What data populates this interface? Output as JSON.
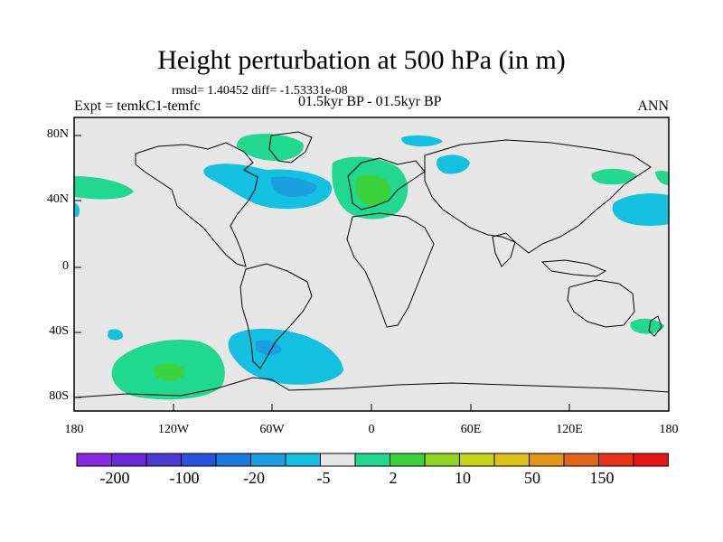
{
  "title": "Height perturbation at 500 hPa (in m)",
  "subtitle": "rmsd= 1.40452 diff= -1.53331e-08",
  "left_label": "Expt = temkC1-temfc",
  "center_label": "01.5kyr BP - 01.5kyr BP",
  "right_label": "ANN",
  "y_ticks": [
    "80N",
    "40N",
    "0",
    "40S",
    "80S"
  ],
  "x_ticks": [
    "180",
    "120W",
    "60W",
    "0",
    "60E",
    "120E",
    "180"
  ],
  "colorbar": {
    "colors": [
      "#8a2be2",
      "#6a28d8",
      "#4b3bd0",
      "#2a52dc",
      "#1a7ae0",
      "#1aa0e0",
      "#14c0e0",
      "#e6e6e6",
      "#20d890",
      "#3cd23c",
      "#8ed420",
      "#c8d41a",
      "#e0c01a",
      "#e0961a",
      "#e0641a",
      "#e8321a",
      "#e81414"
    ],
    "labels": [
      "-200",
      "-100",
      "-20",
      "-5",
      "2",
      "10",
      "50",
      "150"
    ]
  },
  "colors": {
    "land_ocean": "#e6e6e6",
    "light_blue": "#14c0e0",
    "mid_blue": "#1aa0e0",
    "light_green": "#20d890",
    "green": "#3cd23c",
    "yellow_green": "#8ed420"
  }
}
